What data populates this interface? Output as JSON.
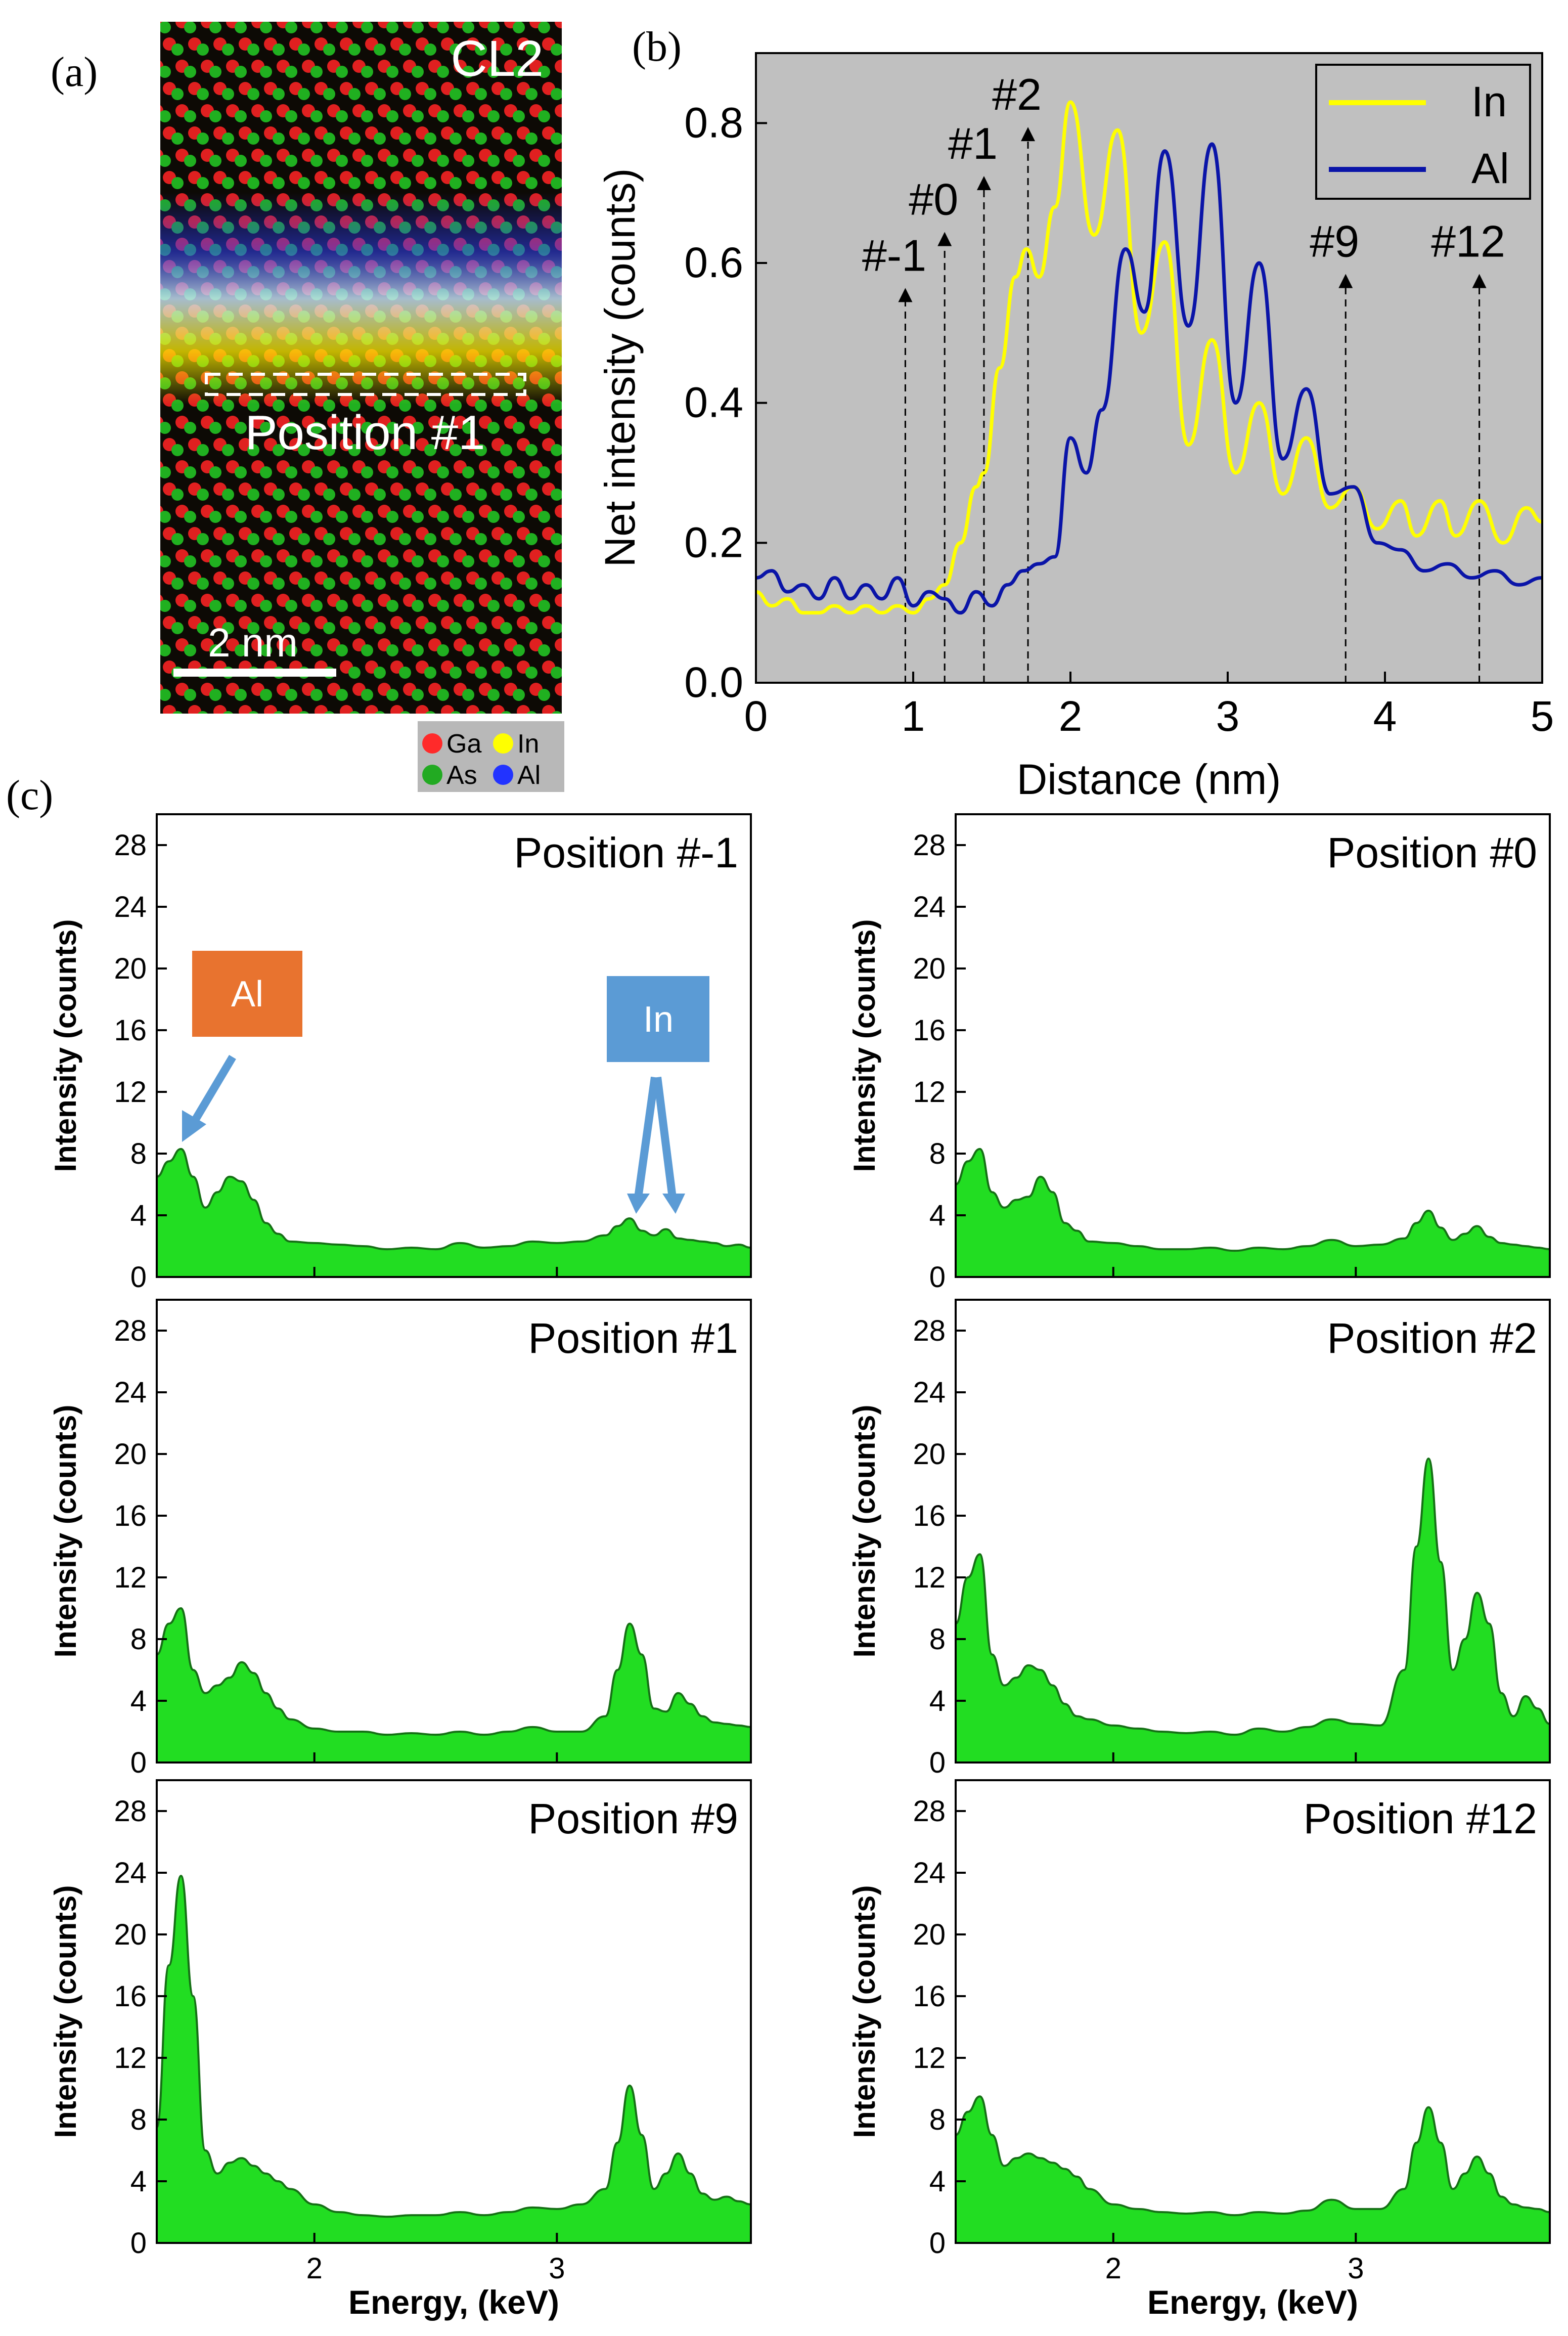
{
  "panel_labels": {
    "a": "(a)",
    "b": "(b)",
    "c": "(c)"
  },
  "micrograph": {
    "label": "CL2",
    "region_label": "Position #1",
    "scale_bar": "2 nm",
    "legend": [
      {
        "name": "Ga",
        "color": "#ff2a2a"
      },
      {
        "name": "In",
        "color": "#ffff00"
      },
      {
        "name": "As",
        "color": "#22aa22"
      },
      {
        "name": "Al",
        "color": "#2233ff"
      }
    ]
  },
  "chart_data": [
    {
      "id": "b",
      "type": "line",
      "xlabel": "Distance (nm)",
      "ylabel": "Net intensity (counts)",
      "xlim": [
        0,
        5
      ],
      "ylim": [
        0,
        0.9
      ],
      "xticks": [
        0,
        1,
        2,
        3,
        4,
        5
      ],
      "xtick_labels": [
        "0",
        "1",
        "2",
        "3",
        "4",
        "5"
      ],
      "yticks": [
        0.0,
        0.2,
        0.4,
        0.6,
        0.8
      ],
      "ytick_labels": [
        "0.0",
        "0.2",
        "0.4",
        "0.6",
        "0.8"
      ],
      "legend_position": "top-right",
      "series": [
        {
          "name": "In",
          "color": "#ffff00",
          "x": [
            0,
            0.1,
            0.2,
            0.3,
            0.4,
            0.5,
            0.6,
            0.7,
            0.8,
            0.9,
            1.0,
            1.1,
            1.2,
            1.3,
            1.4,
            1.45,
            1.55,
            1.65,
            1.72,
            1.8,
            1.9,
            2.0,
            2.15,
            2.3,
            2.45,
            2.6,
            2.75,
            2.9,
            3.05,
            3.2,
            3.35,
            3.5,
            3.65,
            3.8,
            3.95,
            4.1,
            4.2,
            4.35,
            4.45,
            4.6,
            4.75,
            4.9,
            5.0
          ],
          "y": [
            0.13,
            0.11,
            0.12,
            0.1,
            0.1,
            0.11,
            0.1,
            0.11,
            0.1,
            0.11,
            0.1,
            0.12,
            0.14,
            0.2,
            0.28,
            0.3,
            0.45,
            0.58,
            0.62,
            0.58,
            0.68,
            0.83,
            0.64,
            0.79,
            0.5,
            0.63,
            0.34,
            0.49,
            0.3,
            0.4,
            0.27,
            0.35,
            0.25,
            0.28,
            0.22,
            0.26,
            0.21,
            0.26,
            0.21,
            0.26,
            0.2,
            0.25,
            0.23
          ]
        },
        {
          "name": "Al",
          "color": "#0a14a8",
          "x": [
            0,
            0.1,
            0.2,
            0.3,
            0.4,
            0.5,
            0.6,
            0.7,
            0.8,
            0.9,
            1.0,
            1.1,
            1.2,
            1.3,
            1.4,
            1.5,
            1.6,
            1.7,
            1.8,
            1.9,
            2.0,
            2.1,
            2.2,
            2.35,
            2.47,
            2.6,
            2.75,
            2.9,
            3.05,
            3.2,
            3.35,
            3.5,
            3.65,
            3.8,
            3.95,
            4.1,
            4.25,
            4.4,
            4.55,
            4.7,
            4.85,
            5.0
          ],
          "y": [
            0.15,
            0.16,
            0.13,
            0.14,
            0.12,
            0.15,
            0.12,
            0.14,
            0.12,
            0.15,
            0.11,
            0.13,
            0.12,
            0.1,
            0.13,
            0.11,
            0.14,
            0.16,
            0.17,
            0.18,
            0.35,
            0.3,
            0.39,
            0.62,
            0.53,
            0.76,
            0.51,
            0.77,
            0.4,
            0.6,
            0.32,
            0.42,
            0.27,
            0.28,
            0.2,
            0.19,
            0.16,
            0.17,
            0.15,
            0.16,
            0.14,
            0.15
          ]
        }
      ],
      "annotations": [
        {
          "label": "#-1",
          "x": 0.95,
          "y_tip": 0.56
        },
        {
          "label": "#0",
          "x": 1.2,
          "y_tip": 0.64
        },
        {
          "label": "#1",
          "x": 1.45,
          "y_tip": 0.72
        },
        {
          "label": "#2",
          "x": 1.73,
          "y_tip": 0.79
        },
        {
          "label": "#9",
          "x": 3.75,
          "y_tip": 0.58
        },
        {
          "label": "#12",
          "x": 4.6,
          "y_tip": 0.58
        }
      ]
    },
    {
      "id": "c",
      "type": "area",
      "xlabel": "Energy, (keV)",
      "ylabel": "Intensity (counts)",
      "xlim": [
        1.35,
        3.8
      ],
      "ylim": [
        0,
        30
      ],
      "xticks": [
        2,
        3
      ],
      "xtick_labels": [
        "2",
        "3"
      ],
      "yticks": [
        0,
        4,
        8,
        12,
        16,
        20,
        24,
        28
      ],
      "ytick_labels": [
        "0",
        "4",
        "8",
        "12",
        "16",
        "20",
        "24",
        "28"
      ],
      "fill_color": "#22dd22",
      "line_color": "#157015",
      "energy": [
        1.35,
        1.4,
        1.45,
        1.5,
        1.55,
        1.6,
        1.65,
        1.7,
        1.75,
        1.8,
        1.85,
        1.9,
        2.0,
        2.1,
        2.2,
        2.3,
        2.4,
        2.5,
        2.6,
        2.7,
        2.8,
        2.9,
        3.0,
        3.1,
        3.2,
        3.25,
        3.3,
        3.35,
        3.4,
        3.45,
        3.5,
        3.55,
        3.6,
        3.65,
        3.7,
        3.75,
        3.8
      ],
      "panels": [
        {
          "title": "Position #-1",
          "counts": [
            6.5,
            7.5,
            8.3,
            6.5,
            4.5,
            5.5,
            6.5,
            6.2,
            5.0,
            3.5,
            2.8,
            2.3,
            2.2,
            2.1,
            2.0,
            1.8,
            1.9,
            1.8,
            2.2,
            1.9,
            2.0,
            2.3,
            2.2,
            2.3,
            2.7,
            3.3,
            3.8,
            3.0,
            2.7,
            3.1,
            2.5,
            2.4,
            2.3,
            2.2,
            2.0,
            2.1,
            1.9
          ]
        },
        {
          "title": "Position #0",
          "counts": [
            6.0,
            7.5,
            8.3,
            5.5,
            4.5,
            5.0,
            5.2,
            6.5,
            5.5,
            3.5,
            3.0,
            2.3,
            2.2,
            2.0,
            1.8,
            1.8,
            1.9,
            1.7,
            1.9,
            1.8,
            2.0,
            2.4,
            2.0,
            2.1,
            2.5,
            3.5,
            4.3,
            3.2,
            2.4,
            2.8,
            3.3,
            2.6,
            2.2,
            2.1,
            2.0,
            1.9,
            1.8
          ]
        },
        {
          "title": "Position #1",
          "counts": [
            7.0,
            9.0,
            10.0,
            6.0,
            4.5,
            5.0,
            5.5,
            6.5,
            5.8,
            4.5,
            3.5,
            2.8,
            2.2,
            2.0,
            2.0,
            1.8,
            1.9,
            1.8,
            2.0,
            1.8,
            2.0,
            2.3,
            2.0,
            2.0,
            3.0,
            6.0,
            9.0,
            7.0,
            3.5,
            3.3,
            4.5,
            3.8,
            3.0,
            2.6,
            2.5,
            2.4,
            2.3
          ]
        },
        {
          "title": "Position #2",
          "counts": [
            9.0,
            12.0,
            13.5,
            7.0,
            5.0,
            5.5,
            6.3,
            6.0,
            5.0,
            3.8,
            3.0,
            2.8,
            2.4,
            2.2,
            2.0,
            1.9,
            2.0,
            1.8,
            2.2,
            2.0,
            2.3,
            2.8,
            2.5,
            2.4,
            6.0,
            14.0,
            19.7,
            13.0,
            6.0,
            8.0,
            11.0,
            9.0,
            4.5,
            3.0,
            4.3,
            3.5,
            2.5
          ]
        },
        {
          "title": "Position #9",
          "counts": [
            7.5,
            18.0,
            23.8,
            16.0,
            6.0,
            4.5,
            5.2,
            5.5,
            5.0,
            4.5,
            4.0,
            3.5,
            2.5,
            2.0,
            1.8,
            1.7,
            1.8,
            1.8,
            2.0,
            1.8,
            2.0,
            2.3,
            2.2,
            2.5,
            3.5,
            6.5,
            10.2,
            7.0,
            3.5,
            4.5,
            5.8,
            4.5,
            3.2,
            2.8,
            3.0,
            2.7,
            2.5
          ]
        },
        {
          "title": "Position #12",
          "counts": [
            7.0,
            8.5,
            9.5,
            7.0,
            5.0,
            5.5,
            5.8,
            5.5,
            5.2,
            4.8,
            4.3,
            3.5,
            2.5,
            2.2,
            2.0,
            1.9,
            2.0,
            1.8,
            2.0,
            1.9,
            2.1,
            2.8,
            2.2,
            2.2,
            3.5,
            6.5,
            8.8,
            6.5,
            3.5,
            4.5,
            5.6,
            4.5,
            3.0,
            2.5,
            2.3,
            2.2,
            2.0
          ]
        }
      ],
      "callouts": [
        {
          "label": "Al",
          "box_color": "#e8732f"
        },
        {
          "label": "In",
          "box_color": "#5b9bd5"
        }
      ]
    }
  ]
}
